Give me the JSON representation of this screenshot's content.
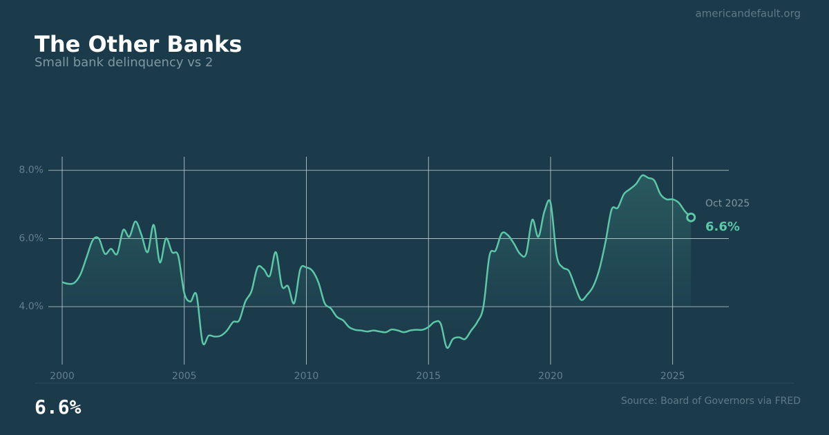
{
  "chart_data": {
    "type": "line",
    "title": "The Other Banks",
    "subtitle": "Small bank delinquency vs 2",
    "source": "Source: Board of Governors via FRED",
    "brand": "americandefault.org",
    "x": [
      2000,
      2000.25,
      2000.5,
      2000.75,
      2001,
      2001.25,
      2001.5,
      2001.75,
      2002,
      2002.25,
      2002.5,
      2002.75,
      2003,
      2003.25,
      2003.5,
      2003.75,
      2004,
      2004.25,
      2004.5,
      2004.75,
      2005,
      2005.25,
      2005.5,
      2005.75,
      2006,
      2006.25,
      2006.5,
      2006.75,
      2007,
      2007.25,
      2007.5,
      2007.75,
      2008,
      2008.25,
      2008.5,
      2008.75,
      2009,
      2009.25,
      2009.5,
      2009.75,
      2010,
      2010.25,
      2010.5,
      2010.75,
      2011,
      2011.25,
      2011.5,
      2011.75,
      2012,
      2012.25,
      2012.5,
      2012.75,
      2013,
      2013.25,
      2013.5,
      2013.75,
      2014,
      2014.25,
      2014.5,
      2014.75,
      2015,
      2015.25,
      2015.5,
      2015.75,
      2016,
      2016.25,
      2016.5,
      2016.75,
      2017,
      2017.25,
      2017.5,
      2017.75,
      2018,
      2018.25,
      2018.5,
      2018.75,
      2019,
      2019.25,
      2019.5,
      2019.75,
      2020,
      2020.25,
      2020.5,
      2020.75,
      2021,
      2021.25,
      2021.5,
      2021.75,
      2022,
      2022.25,
      2022.5,
      2022.75,
      2023,
      2023.25,
      2023.5,
      2023.75,
      2024,
      2024.25,
      2024.5,
      2024.75,
      2025,
      2025.25,
      2025.5,
      2025.75
    ],
    "series": [
      {
        "name": "Small bank delinquency",
        "color": "#5cc8a8",
        "values": [
          4.72,
          4.67,
          4.7,
          4.95,
          5.45,
          5.95,
          6.0,
          5.55,
          5.7,
          5.55,
          6.25,
          6.05,
          6.5,
          6.1,
          5.6,
          6.4,
          5.3,
          6.0,
          5.6,
          5.5,
          4.4,
          4.15,
          4.35,
          2.95,
          3.15,
          3.12,
          3.15,
          3.3,
          3.55,
          3.6,
          4.15,
          4.45,
          5.15,
          5.1,
          4.9,
          5.6,
          4.6,
          4.6,
          4.1,
          5.1,
          5.15,
          5.05,
          4.7,
          4.1,
          3.95,
          3.7,
          3.6,
          3.4,
          3.32,
          3.3,
          3.27,
          3.3,
          3.27,
          3.25,
          3.33,
          3.3,
          3.25,
          3.3,
          3.32,
          3.32,
          3.4,
          3.55,
          3.5,
          2.8,
          3.05,
          3.1,
          3.05,
          3.3,
          3.55,
          4.0,
          5.5,
          5.65,
          6.15,
          6.1,
          5.85,
          5.55,
          5.55,
          6.55,
          6.05,
          6.8,
          7.05,
          5.5,
          5.15,
          5.05,
          4.6,
          4.2,
          4.35,
          4.6,
          5.1,
          5.9,
          6.85,
          6.9,
          7.3,
          7.45,
          7.6,
          7.85,
          7.78,
          7.7,
          7.3,
          7.15,
          7.15,
          7.05,
          6.8,
          6.62
        ]
      }
    ],
    "annotation": {
      "text": "Oct 2025",
      "value": 6.6,
      "label": "6.6%"
    },
    "xlim": [
      2000,
      2027.3
    ],
    "xticks": [
      2000,
      2005,
      2010,
      2015,
      2020,
      2025
    ],
    "ylim": [
      2.3,
      8.4
    ],
    "yticks": [
      {
        "value": 4,
        "label": "4.0%"
      },
      {
        "value": 6,
        "label": "6.0%"
      },
      {
        "value": 8,
        "label": "8.0%"
      }
    ],
    "grid": true
  }
}
